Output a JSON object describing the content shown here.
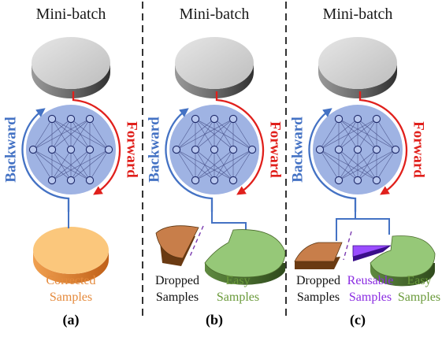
{
  "panels": [
    {
      "id": "a",
      "title": "Mini-batch",
      "forward_label": "Forward",
      "backward_label": "Backward",
      "outputs": [
        {
          "line1": "Corrected",
          "line2": "Samples",
          "color": "#e58a3c"
        }
      ],
      "sublabel": "(a)"
    },
    {
      "id": "b",
      "title": "Mini-batch",
      "forward_label": "Forward",
      "backward_label": "Backward",
      "outputs": [
        {
          "line1": "Dropped",
          "line2": "Samples",
          "color": "#111111"
        },
        {
          "line1": "Easy",
          "line2": "Samples",
          "color": "#6a9a3a"
        }
      ],
      "sublabel": "(b)"
    },
    {
      "id": "c",
      "title": "Mini-batch",
      "forward_label": "Forward",
      "backward_label": "Backward",
      "outputs": [
        {
          "line1": "Dropped",
          "line2": "Samples",
          "color": "#111111"
        },
        {
          "line1": "Reusable",
          "line2": "Samples",
          "color": "#8a2be2"
        },
        {
          "line1": "Easy",
          "line2": "Samples",
          "color": "#6a9a3a"
        }
      ],
      "sublabel": "(c)"
    }
  ],
  "colors": {
    "forward": "#e0201c",
    "backward": "#4472c4",
    "network_fill": "#9fb3e3",
    "disk": "#c8c8c8",
    "corrected": "#fbc77c",
    "dropped": "#c87e4a",
    "easy": "#96c878",
    "reusable": "#9a4dff"
  }
}
